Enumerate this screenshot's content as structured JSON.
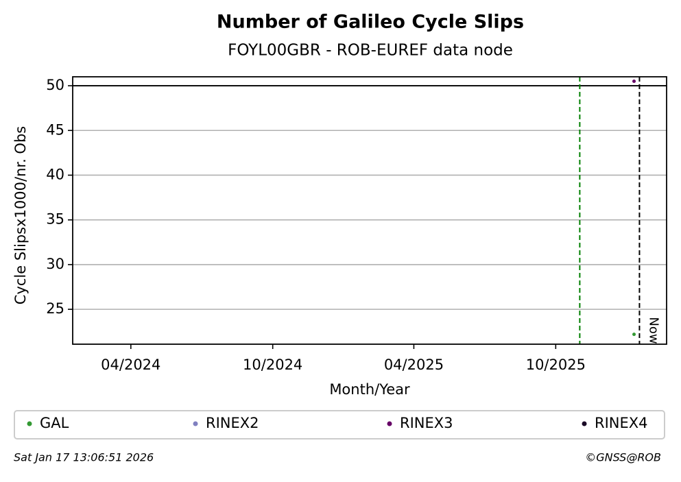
{
  "chart_data": {
    "type": "scatter",
    "title": "Number of Galileo Cycle Slips",
    "subtitle": "FOYL00GBR - ROB-EUREF data node",
    "xlabel": "Month/Year",
    "ylabel": "Cycle Slipsx1000/nr. Obs",
    "x": [
      "2026-01-10"
    ],
    "series": [
      {
        "name": "GAL",
        "color": "#339933",
        "values": [
          22.2
        ]
      },
      {
        "name": "RINEX2",
        "color": "#8080c0",
        "values": [
          null
        ]
      },
      {
        "name": "RINEX3",
        "color": "#660066",
        "values": [
          50.5
        ]
      },
      {
        "name": "RINEX4",
        "color": "#1a0a26",
        "values": [
          null
        ]
      }
    ],
    "xlim": [
      "2024-01-17",
      "2026-02-21"
    ],
    "xticks": [
      {
        "value": "2024-04-01",
        "label": "04/2024"
      },
      {
        "value": "2024-10-01",
        "label": "10/2024"
      },
      {
        "value": "2025-04-01",
        "label": "04/2025"
      },
      {
        "value": "2025-10-01",
        "label": "10/2025"
      }
    ],
    "ylim": [
      21.1,
      51.0
    ],
    "yticks": [
      25,
      30,
      35,
      40,
      45,
      50
    ],
    "grid": true,
    "hlines": [
      50
    ],
    "vlines": [
      {
        "x": "2025-11-01",
        "color": "#008000"
      },
      {
        "x": "2026-01-17",
        "color": "#000000",
        "label": "Now"
      }
    ],
    "legend": "bottom",
    "footer_left": "Sat Jan 17 13:06:51 2026",
    "footer_right": "©GNSS@ROB"
  }
}
